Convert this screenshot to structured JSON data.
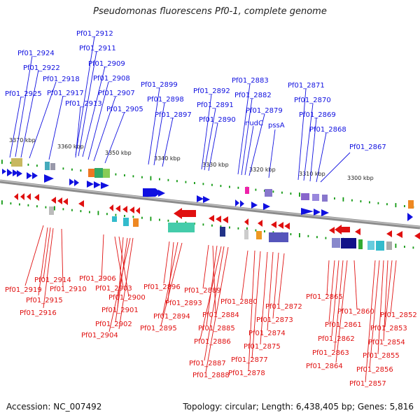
{
  "title": "Pseudomonas fluorescens Pf0-1, complete genome",
  "footer": {
    "accession": "Accession: NC_007492",
    "topology": "Topology: circular; Length: 6,438,405 bp; Genes: 5,816"
  },
  "colors": {
    "forward": "#1010e0",
    "reverse": "#e01010",
    "backbone": "#8c8c8c",
    "tick": "#119911"
  },
  "ruler": [
    "3370 kbp",
    "3360 kbp",
    "3350 kbp",
    "3340 kbp",
    "3330 kbp",
    "3320 kbp",
    "3310 kbp",
    "3300 kbp"
  ],
  "top_labels": [
    "Pf01_2912",
    "Pf01_2911",
    "Pf01_2924",
    "Pf01_2922",
    "Pf01_2909",
    "Pf01_2918",
    "Pf01_2908",
    "Pf01_2925",
    "Pf01_2917",
    "Pf01_2907",
    "Pf01_2913",
    "Pf01_2905",
    "Pf01_2899",
    "Pf01_2898",
    "Pf01_2897",
    "Pf01_2892",
    "Pf01_2891",
    "Pf01_2890",
    "Pf01_2883",
    "Pf01_2882",
    "Pf01_2879",
    "nudC",
    "pssA",
    "Pf01_2871",
    "Pf01_2870",
    "Pf01_2869",
    "Pf01_2868",
    "Pf01_2867"
  ],
  "bottom_labels": [
    "Pf01_2906",
    "Pf01_2914",
    "Pf01_2903",
    "Pf01_2919",
    "Pf01_2910",
    "Pf01_2900",
    "Pf01_2915",
    "Pf01_2901",
    "Pf01_2916",
    "Pf01_2902",
    "Pf01_2904",
    "Pf01_2896",
    "Pf01_2893",
    "Pf01_2894",
    "Pf01_2895",
    "Pf01_2889",
    "Pf01_2884",
    "Pf01_2885",
    "Pf01_2886",
    "Pf01_2887",
    "Pf01_2888",
    "Pf01_2880",
    "Pf01_2872",
    "Pf01_2873",
    "Pf01_2874",
    "Pf01_2875",
    "Pf01_2877",
    "Pf01_2878",
    "Pf01_2865",
    "Pf01_2860",
    "Pf01_2852",
    "Pf01_2861",
    "Pf01_2853",
    "Pf01_2862",
    "Pf01_2854",
    "Pf01_2863",
    "Pf01_2855",
    "Pf01_2864",
    "Pf01_2856",
    "Pf01_2857"
  ]
}
